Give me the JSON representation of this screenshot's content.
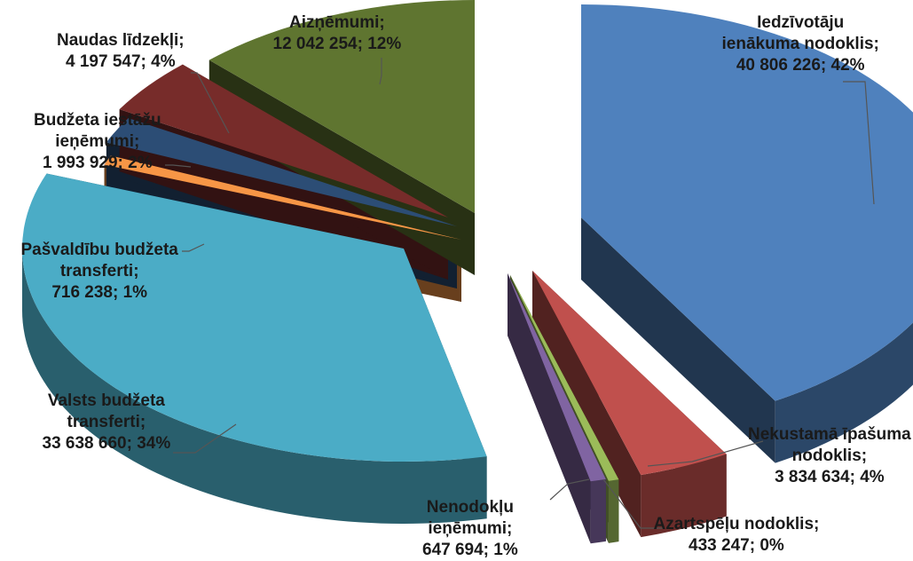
{
  "chart_data": {
    "type": "pie",
    "style": "3d-exploded",
    "legend": "none",
    "slices": [
      {
        "label_lines": [
          "Iedzīvotāju",
          "ienākuma nodoklis;",
          "40 806 226; 42%"
        ],
        "value": 40806226,
        "percent": "42%",
        "color": "#4F81BD"
      },
      {
        "label_lines": [
          "Nekustamā īpašuma",
          "nodoklis;",
          "3 834 634; 4%"
        ],
        "value": 3834634,
        "percent": "4%",
        "color": "#C0504D"
      },
      {
        "label_lines": [
          "Azartspēļu nodoklis;",
          "433 247; 0%"
        ],
        "value": 433247,
        "percent": "0%",
        "color": "#9BBB59"
      },
      {
        "label_lines": [
          "Nenodokļu",
          "ieņēmumi;",
          "647 694; 1%"
        ],
        "value": 647694,
        "percent": "1%",
        "color": "#8064A2"
      },
      {
        "label_lines": [
          "Valsts budžeta",
          "transferti;",
          "33 638 660; 34%"
        ],
        "value": 33638660,
        "percent": "34%",
        "color": "#4BACC6"
      },
      {
        "label_lines": [
          "Pašvaldību budžeta",
          "transferti;",
          "716 238; 1%"
        ],
        "value": 716238,
        "percent": "1%",
        "color": "#F79646"
      },
      {
        "label_lines": [
          "Budžeta iestāžu",
          "ieņēmumi;",
          "1 993 929; 2%"
        ],
        "value": 1993929,
        "percent": "2%",
        "color": "#2C4D75"
      },
      {
        "label_lines": [
          "Naudas līdzekļi;",
          "4 197 547; 4%"
        ],
        "value": 4197547,
        "percent": "4%",
        "color": "#772C2A"
      },
      {
        "label_lines": [
          "Aizņēmumi;",
          "12 042 254; 12%"
        ],
        "value": 12042254,
        "percent": "12%",
        "color": "#5F7530"
      }
    ]
  }
}
